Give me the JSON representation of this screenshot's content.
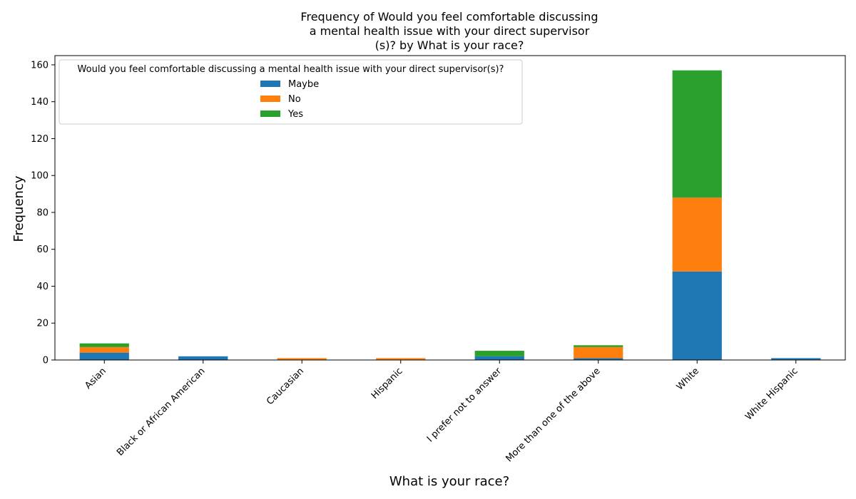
{
  "chart_data": {
    "type": "bar",
    "stacked": true,
    "title_lines": [
      "Frequency of Would you feel comfortable discussing",
      "a mental health issue with your direct supervisor",
      "(s)? by What is your race?"
    ],
    "xlabel": "What is your race?",
    "ylabel": "Frequency",
    "ylim": [
      0,
      165
    ],
    "yticks": [
      0,
      20,
      40,
      60,
      80,
      100,
      120,
      140,
      160
    ],
    "categories": [
      "Asian",
      "Black or African American",
      "Caucasian",
      "Hispanic",
      "I prefer not to answer",
      "More than one of the above",
      "White",
      "White Hispanic"
    ],
    "legend": {
      "title": "Would you feel comfortable discussing a mental health issue with your direct supervisor(s)?",
      "placement": "upper-left"
    },
    "series": [
      {
        "name": "Maybe",
        "color": "#1f77b4",
        "values": [
          4,
          2,
          0,
          0,
          2,
          1,
          48,
          1
        ]
      },
      {
        "name": "No",
        "color": "#ff7f0e",
        "values": [
          3,
          0,
          1,
          1,
          0,
          6,
          40,
          0
        ]
      },
      {
        "name": "Yes",
        "color": "#2ca02c",
        "values": [
          2,
          0,
          0,
          0,
          3,
          1,
          69,
          0
        ]
      }
    ],
    "grid": false
  }
}
